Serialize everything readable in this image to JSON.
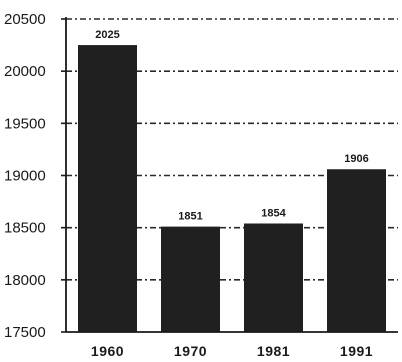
{
  "chart_data": {
    "type": "bar",
    "title": "",
    "xlabel": "",
    "ylabel": "",
    "categories": [
      "1960",
      "1970",
      "1981",
      "1991"
    ],
    "values": [
      20250,
      18510,
      18540,
      19060
    ],
    "data_labels": [
      "2025",
      "1851",
      "1854",
      "1906"
    ],
    "yticks": [
      17500,
      18000,
      18500,
      19000,
      19500,
      20000,
      20500
    ],
    "ylim": [
      17500,
      20500
    ],
    "grid": true,
    "grid_style": "dash-dot",
    "legend": "none",
    "bar_color": "#202020"
  }
}
